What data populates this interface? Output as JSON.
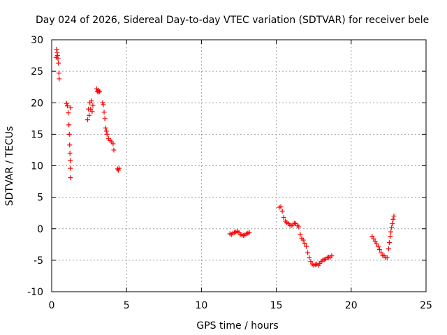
{
  "chart_data": {
    "type": "scatter",
    "title": "Day 024 of 2026, Sidereal Day-to-day VTEC variation (SDTVAR) for receiver bele",
    "xlabel": "GPS time / hours",
    "ylabel": "SDTVAR / TECUs",
    "xlim": [
      0,
      25
    ],
    "ylim": [
      -10,
      30
    ],
    "xticks": [
      0,
      5,
      10,
      15,
      20,
      25
    ],
    "yticks": [
      -10,
      -5,
      0,
      5,
      10,
      15,
      20,
      25,
      30
    ],
    "grid": true,
    "marker": "+",
    "series": [
      {
        "name": "SDTVAR",
        "color": "#ff0000",
        "segments": [
          {
            "x": [
              0.3,
              0.33,
              0.36,
              0.39,
              0.42,
              0.45,
              0.48,
              0.5
            ],
            "y": [
              27.2,
              28.5,
              28.0,
              27.5,
              27.0,
              26.3,
              24.7,
              23.8
            ]
          },
          {
            "x": [
              1.0,
              1.05,
              1.1,
              1.15,
              1.18,
              1.2,
              1.22,
              1.24,
              1.25,
              1.26,
              1.27
            ],
            "y": [
              19.9,
              19.5,
              18.4,
              16.5,
              15.0,
              13.3,
              12.0,
              10.8,
              9.6,
              8.1,
              19.2
            ]
          },
          {
            "x": [
              2.4,
              2.45,
              2.5,
              2.55,
              2.6,
              2.65,
              2.7,
              2.75
            ],
            "y": [
              17.3,
              19.0,
              18.0,
              20.0,
              19.0,
              20.3,
              18.6,
              19.6
            ]
          },
          {
            "x": [
              3.0,
              3.05,
              3.1,
              3.15,
              3.2
            ],
            "y": [
              22.2,
              21.8,
              22.0,
              21.7,
              21.8
            ]
          },
          {
            "x": [
              3.4,
              3.45,
              3.5,
              3.55,
              3.6,
              3.65,
              3.7,
              3.8,
              3.9,
              4.0,
              4.1,
              4.15
            ],
            "y": [
              20.0,
              19.7,
              18.5,
              17.5,
              16.0,
              15.5,
              15.0,
              14.3,
              14.0,
              13.8,
              13.5,
              12.5
            ]
          },
          {
            "x": [
              4.4,
              4.45,
              4.5
            ],
            "y": [
              9.5,
              9.3,
              9.6
            ]
          },
          {
            "x": [
              11.9,
              12.0,
              12.1,
              12.2,
              12.3,
              12.4,
              12.5,
              12.6,
              12.7,
              12.8,
              12.9,
              13.0,
              13.1,
              13.2
            ],
            "y": [
              -0.8,
              -0.9,
              -0.7,
              -0.6,
              -0.5,
              -0.4,
              -0.6,
              -0.9,
              -1.0,
              -1.1,
              -1.0,
              -0.8,
              -0.7,
              -0.6
            ]
          },
          {
            "x": [
              15.2,
              15.3,
              15.4,
              15.5,
              15.6,
              15.7,
              15.8,
              15.9,
              16.0,
              16.1,
              16.2,
              16.3,
              16.4,
              16.5,
              16.6,
              16.7,
              16.8,
              16.9,
              17.0,
              17.1,
              17.2,
              17.3,
              17.4,
              17.5,
              17.6,
              17.7,
              17.8,
              17.9,
              18.0,
              18.1,
              18.2,
              18.3,
              18.4,
              18.5,
              18.6,
              18.7
            ],
            "y": [
              3.4,
              3.5,
              2.8,
              1.8,
              1.2,
              1.0,
              0.8,
              0.6,
              0.5,
              0.6,
              0.9,
              0.8,
              0.5,
              0.3,
              -0.9,
              -1.5,
              -1.8,
              -2.3,
              -2.8,
              -3.8,
              -4.6,
              -5.2,
              -5.6,
              -5.8,
              -5.7,
              -5.6,
              -5.8,
              -5.5,
              -5.2,
              -5.0,
              -4.9,
              -4.8,
              -4.6,
              -4.5,
              -4.5,
              -4.3
            ]
          },
          {
            "x": [
              21.4,
              21.5,
              21.6,
              21.7,
              21.8,
              21.9,
              22.0,
              22.1,
              22.2,
              22.3,
              22.4,
              22.5,
              22.55,
              22.6,
              22.65,
              22.7,
              22.75,
              22.8,
              22.85
            ],
            "y": [
              -1.2,
              -1.6,
              -2.0,
              -2.4,
              -2.8,
              -3.3,
              -3.8,
              -4.2,
              -4.3,
              -4.6,
              -4.6,
              -3.2,
              -2.2,
              -1.2,
              -0.5,
              0.2,
              0.8,
              1.5,
              2.0
            ]
          }
        ]
      }
    ]
  }
}
